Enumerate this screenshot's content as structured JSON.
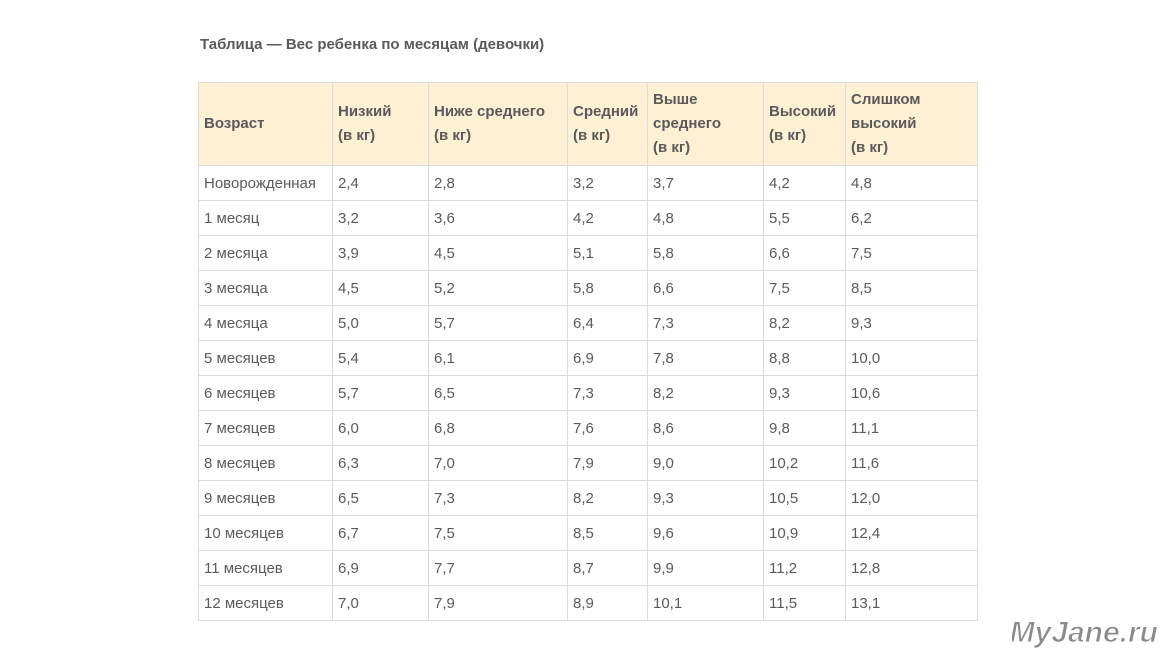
{
  "caption": "Таблица — Вес ребенка по месяцам (девочки)",
  "columns": [
    {
      "lines": [
        "Возраст"
      ]
    },
    {
      "lines": [
        "Низкий",
        "(в кг)"
      ]
    },
    {
      "lines": [
        "Ниже среднего",
        "(в кг)"
      ]
    },
    {
      "lines": [
        "Средний",
        "(в кг)"
      ]
    },
    {
      "lines": [
        "Выше",
        "среднего",
        "(в кг)"
      ]
    },
    {
      "lines": [
        "Высокий",
        "(в кг)"
      ]
    },
    {
      "lines": [
        "Слишком",
        "высокий",
        "(в кг)"
      ]
    }
  ],
  "rows": [
    [
      "Новорожденная",
      "2,4",
      "2,8",
      "3,2",
      "3,7",
      "4,2",
      "4,8"
    ],
    [
      "1 месяц",
      "3,2",
      "3,6",
      "4,2",
      "4,8",
      "5,5",
      "6,2"
    ],
    [
      "2 месяца",
      "3,9",
      "4,5",
      "5,1",
      "5,8",
      "6,6",
      "7,5"
    ],
    [
      "3 месяца",
      "4,5",
      "5,2",
      "5,8",
      "6,6",
      "7,5",
      "8,5"
    ],
    [
      "4 месяца",
      "5,0",
      "5,7",
      "6,4",
      "7,3",
      "8,2",
      "9,3"
    ],
    [
      "5 месяцев",
      "5,4",
      "6,1",
      "6,9",
      "7,8",
      "8,8",
      "10,0"
    ],
    [
      "6 месяцев",
      "5,7",
      "6,5",
      "7,3",
      "8,2",
      "9,3",
      "10,6"
    ],
    [
      "7 месяцев",
      "6,0",
      "6,8",
      "7,6",
      "8,6",
      "9,8",
      "11,1"
    ],
    [
      "8 месяцев",
      "6,3",
      "7,0",
      "7,9",
      "9,0",
      "10,2",
      "11,6"
    ],
    [
      "9 месяцев",
      "6,5",
      "7,3",
      "8,2",
      "9,3",
      "10,5",
      "12,0"
    ],
    [
      "10 месяцев",
      "6,7",
      "7,5",
      "8,5",
      "9,6",
      "10,9",
      "12,4"
    ],
    [
      "11 месяцев",
      "6,9",
      "7,7",
      "8,7",
      "9,9",
      "11,2",
      "12,8"
    ],
    [
      "12 месяцев",
      "7,0",
      "7,9",
      "8,9",
      "10,1",
      "11,5",
      "13,1"
    ]
  ],
  "watermark": "MyJane.ru",
  "colors": {
    "header_bg": "#fdf0d5",
    "border": "#dcdcdc",
    "text": "#5a5a5a"
  }
}
